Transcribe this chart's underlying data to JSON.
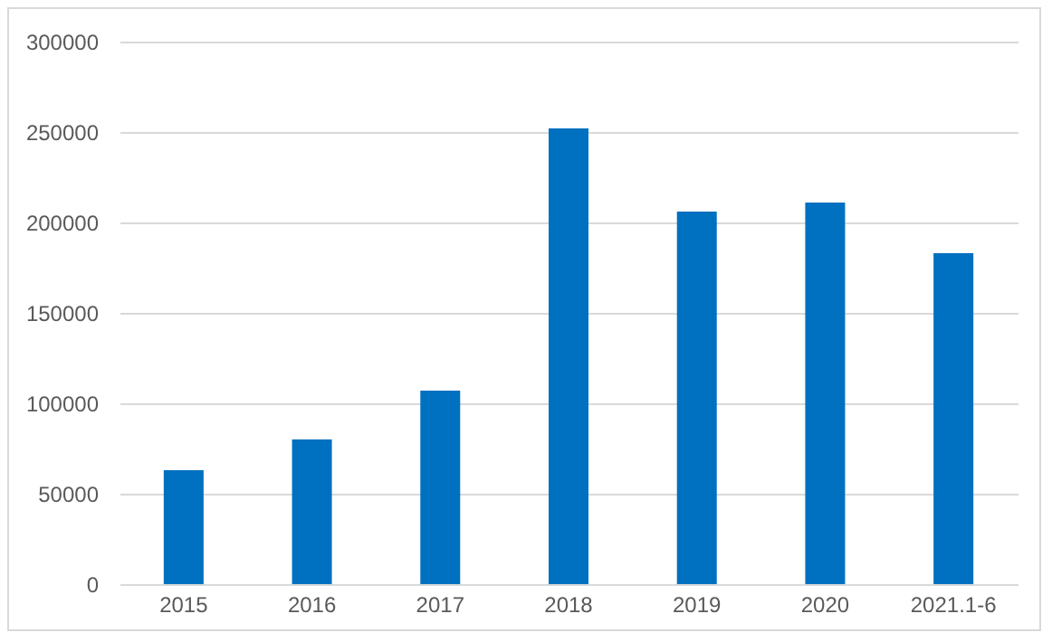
{
  "chart_data": {
    "type": "bar",
    "categories": [
      "2015",
      "2016",
      "2017",
      "2018",
      "2019",
      "2020",
      "2021.1-6"
    ],
    "values": [
      63000,
      80000,
      107000,
      252000,
      206000,
      211000,
      183000
    ],
    "color": "#0070c0",
    "ylim": [
      0,
      300000
    ],
    "yticks": [
      0,
      50000,
      100000,
      150000,
      200000,
      250000,
      300000
    ],
    "grid": "y"
  }
}
